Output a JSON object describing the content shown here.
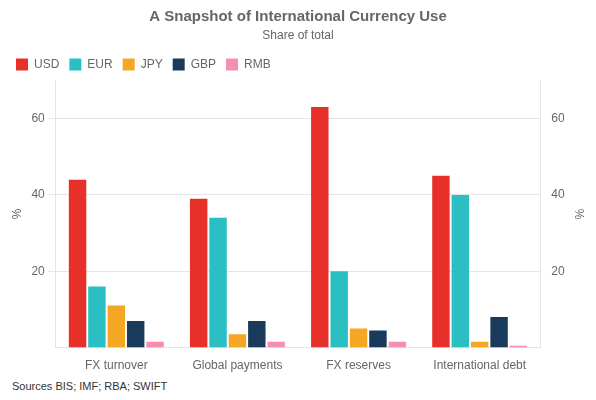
{
  "chart_data": {
    "type": "bar",
    "title": "A Snapshot of International Currency Use",
    "subtitle": "Share of total",
    "categories": [
      "FX turnover",
      "Global payments",
      "FX reserves",
      "International debt"
    ],
    "series": [
      {
        "name": "USD",
        "color": "#e8302a",
        "values": [
          44,
          39,
          63,
          45
        ]
      },
      {
        "name": "EUR",
        "color": "#2bbfc4",
        "values": [
          16,
          34,
          20,
          40
        ]
      },
      {
        "name": "JPY",
        "color": "#f5a623",
        "values": [
          11,
          3.5,
          5,
          1.5
        ]
      },
      {
        "name": "GBP",
        "color": "#1a3a5c",
        "values": [
          7,
          7,
          4.5,
          8
        ]
      },
      {
        "name": "RMB",
        "color": "#f48fb1",
        "values": [
          1.5,
          1.5,
          1.5,
          0.5
        ]
      }
    ],
    "ylabel": "%",
    "y2label": "%",
    "ylim": [
      0,
      70
    ],
    "yticks": [
      20,
      40,
      60
    ],
    "y2lim": [
      0,
      70
    ],
    "y2ticks": [
      20,
      40,
      60
    ],
    "grid": true,
    "legend": "upper left",
    "source": "Sources BIS; IMF; RBA; SWIFT"
  }
}
